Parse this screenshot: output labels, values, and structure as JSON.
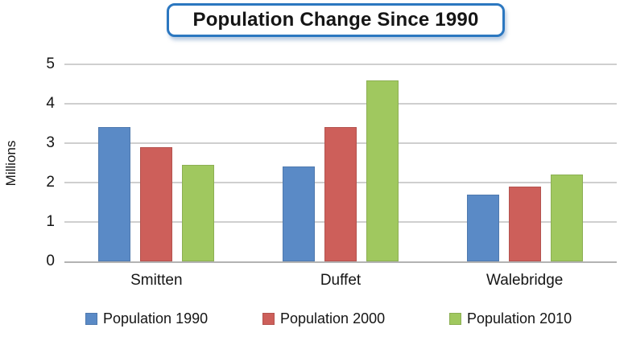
{
  "title": "Population Change Since 1990",
  "chart_data": {
    "type": "bar",
    "title": "Population Change Since 1990",
    "categories": [
      "Smitten",
      "Duffet",
      "Walebridge"
    ],
    "series": [
      {
        "name": "Population 1990",
        "color": "#5a8ac6",
        "values": [
          3.4,
          2.4,
          1.7
        ]
      },
      {
        "name": "Population 2000",
        "color": "#cd5f5a",
        "values": [
          2.9,
          3.4,
          1.9
        ]
      },
      {
        "name": "Population 2010",
        "color": "#a0c85f",
        "values": [
          2.45,
          4.6,
          2.2
        ]
      }
    ],
    "xlabel": "",
    "ylabel": "Millions",
    "ylim": [
      0,
      5
    ],
    "yticks": [
      0,
      1,
      2,
      3,
      4,
      5
    ],
    "grid": true,
    "legend_position": "bottom"
  },
  "colors": {
    "title_border": "#2b77c0",
    "gridline": "#cfcfcf",
    "axis_line": "#b3b3b3",
    "text": "#151515",
    "background": "#ffffff"
  }
}
